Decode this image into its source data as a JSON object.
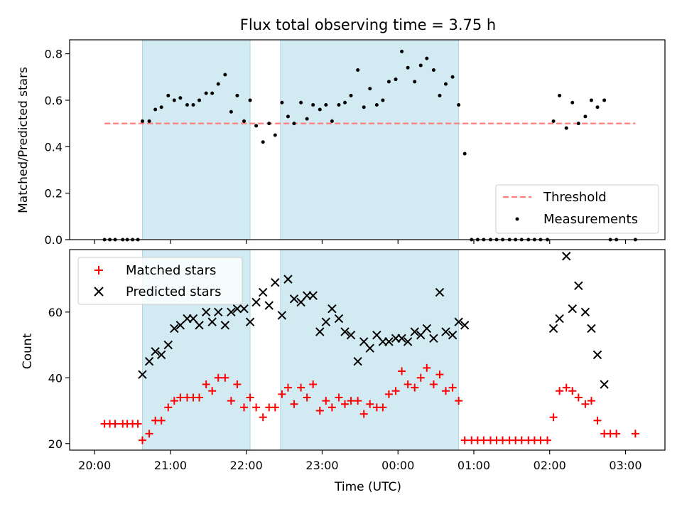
{
  "chart_data": {
    "title": "Flux total observing time = 3.75 h",
    "xlabel": "Time (UTC)",
    "x_tick_labels": [
      "20:00",
      "21:00",
      "22:00",
      "23:00",
      "00:00",
      "01:00",
      "02:00",
      "03:00"
    ],
    "x_tick_values_hours": [
      20,
      21,
      22,
      23,
      24,
      25,
      26,
      27
    ],
    "xlim_hours": [
      19.67,
      27.52
    ],
    "shaded_intervals_hours": [
      [
        20.63,
        22.05
      ],
      [
        22.45,
        24.8
      ]
    ],
    "shade_color": "#add8e6",
    "panels": [
      {
        "name": "ratio",
        "type": "scatter",
        "ylabel": "Matched/Predicted stars",
        "ylim": [
          0,
          0.86
        ],
        "yticks": [
          0.0,
          0.2,
          0.4,
          0.6,
          0.8
        ],
        "ytick_labels": [
          "0.0",
          "0.2",
          "0.4",
          "0.6",
          "0.8"
        ],
        "threshold": {
          "name": "Threshold",
          "value": 0.5,
          "x_range_hours": [
            20.13,
            27.13
          ],
          "color": "#ff7f7f"
        },
        "series": [
          {
            "name": "Measurements",
            "color": "#000000",
            "marker": "dot",
            "points": [
              [
                20.13,
                0.0
              ],
              [
                20.2,
                0.0
              ],
              [
                20.27,
                0.0
              ],
              [
                20.37,
                0.0
              ],
              [
                20.43,
                0.0
              ],
              [
                20.5,
                0.0
              ],
              [
                20.57,
                0.0
              ],
              [
                20.63,
                0.51
              ],
              [
                20.72,
                0.51
              ],
              [
                20.8,
                0.56
              ],
              [
                20.88,
                0.57
              ],
              [
                20.97,
                0.62
              ],
              [
                21.05,
                0.6
              ],
              [
                21.13,
                0.61
              ],
              [
                21.22,
                0.58
              ],
              [
                21.3,
                0.58
              ],
              [
                21.38,
                0.6
              ],
              [
                21.47,
                0.63
              ],
              [
                21.55,
                0.63
              ],
              [
                21.63,
                0.67
              ],
              [
                21.72,
                0.71
              ],
              [
                21.8,
                0.55
              ],
              [
                21.88,
                0.62
              ],
              [
                21.97,
                0.51
              ],
              [
                22.05,
                0.6
              ],
              [
                22.13,
                0.49
              ],
              [
                22.22,
                0.42
              ],
              [
                22.3,
                0.5
              ],
              [
                22.38,
                0.45
              ],
              [
                22.47,
                0.59
              ],
              [
                22.55,
                0.53
              ],
              [
                22.63,
                0.5
              ],
              [
                22.72,
                0.59
              ],
              [
                22.8,
                0.52
              ],
              [
                22.88,
                0.58
              ],
              [
                22.97,
                0.56
              ],
              [
                23.05,
                0.58
              ],
              [
                23.13,
                0.51
              ],
              [
                23.22,
                0.58
              ],
              [
                23.3,
                0.59
              ],
              [
                23.38,
                0.62
              ],
              [
                23.47,
                0.73
              ],
              [
                23.55,
                0.57
              ],
              [
                23.63,
                0.65
              ],
              [
                23.72,
                0.58
              ],
              [
                23.8,
                0.6
              ],
              [
                23.88,
                0.68
              ],
              [
                23.97,
                0.69
              ],
              [
                24.05,
                0.81
              ],
              [
                24.13,
                0.74
              ],
              [
                24.22,
                0.68
              ],
              [
                24.3,
                0.75
              ],
              [
                24.38,
                0.78
              ],
              [
                24.47,
                0.73
              ],
              [
                24.55,
                0.62
              ],
              [
                24.63,
                0.67
              ],
              [
                24.72,
                0.7
              ],
              [
                24.8,
                0.58
              ],
              [
                24.88,
                0.37
              ],
              [
                24.97,
                0.0
              ],
              [
                25.05,
                0.0
              ],
              [
                25.13,
                0.0
              ],
              [
                25.22,
                0.0
              ],
              [
                25.3,
                0.0
              ],
              [
                25.38,
                0.0
              ],
              [
                25.47,
                0.0
              ],
              [
                25.55,
                0.0
              ],
              [
                25.63,
                0.0
              ],
              [
                25.72,
                0.0
              ],
              [
                25.8,
                0.0
              ],
              [
                25.88,
                0.0
              ],
              [
                25.97,
                0.0
              ],
              [
                26.05,
                0.51
              ],
              [
                26.13,
                0.62
              ],
              [
                26.22,
                0.48
              ],
              [
                26.3,
                0.59
              ],
              [
                26.38,
                0.5
              ],
              [
                26.47,
                0.53
              ],
              [
                26.55,
                0.6
              ],
              [
                26.63,
                0.57
              ],
              [
                26.72,
                0.6
              ],
              [
                26.8,
                0.0
              ],
              [
                26.88,
                0.0
              ],
              [
                27.13,
                0.0
              ]
            ]
          }
        ],
        "legend": {
          "placement": "lower right",
          "entries": [
            "Threshold",
            "Measurements"
          ]
        }
      },
      {
        "name": "counts",
        "type": "scatter",
        "ylabel": "Count",
        "ylim": [
          18,
          79
        ],
        "yticks": [
          20,
          40,
          60
        ],
        "ytick_labels": [
          "20",
          "40",
          "60"
        ],
        "series": [
          {
            "name": "Matched stars",
            "color": "#ff0000",
            "marker": "+",
            "points": [
              [
                20.13,
                26
              ],
              [
                20.2,
                26
              ],
              [
                20.27,
                26
              ],
              [
                20.37,
                26
              ],
              [
                20.43,
                26
              ],
              [
                20.5,
                26
              ],
              [
                20.57,
                26
              ],
              [
                20.63,
                21
              ],
              [
                20.72,
                23
              ],
              [
                20.8,
                27
              ],
              [
                20.88,
                27
              ],
              [
                20.97,
                31
              ],
              [
                21.05,
                33
              ],
              [
                21.13,
                34
              ],
              [
                21.22,
                34
              ],
              [
                21.3,
                34
              ],
              [
                21.38,
                34
              ],
              [
                21.47,
                38
              ],
              [
                21.55,
                36
              ],
              [
                21.63,
                40
              ],
              [
                21.72,
                40
              ],
              [
                21.8,
                33
              ],
              [
                21.88,
                38
              ],
              [
                21.97,
                31
              ],
              [
                22.05,
                34
              ],
              [
                22.13,
                31
              ],
              [
                22.22,
                28
              ],
              [
                22.3,
                31
              ],
              [
                22.38,
                31
              ],
              [
                22.47,
                35
              ],
              [
                22.55,
                37
              ],
              [
                22.63,
                32
              ],
              [
                22.72,
                37
              ],
              [
                22.8,
                34
              ],
              [
                22.88,
                38
              ],
              [
                22.97,
                30
              ],
              [
                23.05,
                33
              ],
              [
                23.13,
                31
              ],
              [
                23.22,
                34
              ],
              [
                23.3,
                32
              ],
              [
                23.38,
                33
              ],
              [
                23.47,
                33
              ],
              [
                23.55,
                29
              ],
              [
                23.63,
                32
              ],
              [
                23.72,
                31
              ],
              [
                23.8,
                31
              ],
              [
                23.88,
                35
              ],
              [
                23.97,
                36
              ],
              [
                24.05,
                42
              ],
              [
                24.13,
                38
              ],
              [
                24.22,
                37
              ],
              [
                24.3,
                40
              ],
              [
                24.38,
                43
              ],
              [
                24.47,
                38
              ],
              [
                24.55,
                41
              ],
              [
                24.63,
                36
              ],
              [
                24.72,
                37
              ],
              [
                24.8,
                33
              ],
              [
                24.88,
                21
              ],
              [
                24.97,
                21
              ],
              [
                25.05,
                21
              ],
              [
                25.13,
                21
              ],
              [
                25.22,
                21
              ],
              [
                25.3,
                21
              ],
              [
                25.38,
                21
              ],
              [
                25.47,
                21
              ],
              [
                25.55,
                21
              ],
              [
                25.63,
                21
              ],
              [
                25.72,
                21
              ],
              [
                25.8,
                21
              ],
              [
                25.88,
                21
              ],
              [
                25.97,
                21
              ],
              [
                26.05,
                28
              ],
              [
                26.13,
                36
              ],
              [
                26.22,
                37
              ],
              [
                26.3,
                36
              ],
              [
                26.38,
                34
              ],
              [
                26.47,
                32
              ],
              [
                26.55,
                33
              ],
              [
                26.63,
                27
              ],
              [
                26.72,
                23
              ],
              [
                26.8,
                23
              ],
              [
                26.88,
                23
              ],
              [
                27.13,
                23
              ]
            ]
          },
          {
            "name": "Predicted stars",
            "color": "#000000",
            "marker": "x",
            "points": [
              [
                20.63,
                41
              ],
              [
                20.72,
                45
              ],
              [
                20.8,
                48
              ],
              [
                20.88,
                47
              ],
              [
                20.97,
                50
              ],
              [
                21.05,
                55
              ],
              [
                21.13,
                56
              ],
              [
                21.22,
                58
              ],
              [
                21.3,
                58
              ],
              [
                21.38,
                56
              ],
              [
                21.47,
                60
              ],
              [
                21.55,
                57
              ],
              [
                21.63,
                60
              ],
              [
                21.72,
                56
              ],
              [
                21.8,
                60
              ],
              [
                21.88,
                61
              ],
              [
                21.97,
                61
              ],
              [
                22.05,
                57
              ],
              [
                22.13,
                63
              ],
              [
                22.22,
                66
              ],
              [
                22.3,
                62
              ],
              [
                22.38,
                69
              ],
              [
                22.47,
                59
              ],
              [
                22.55,
                70
              ],
              [
                22.63,
                64
              ],
              [
                22.72,
                63
              ],
              [
                22.8,
                65
              ],
              [
                22.88,
                65
              ],
              [
                22.97,
                54
              ],
              [
                23.05,
                57
              ],
              [
                23.13,
                61
              ],
              [
                23.22,
                58
              ],
              [
                23.3,
                54
              ],
              [
                23.38,
                53
              ],
              [
                23.47,
                45
              ],
              [
                23.55,
                51
              ],
              [
                23.63,
                49
              ],
              [
                23.72,
                53
              ],
              [
                23.8,
                51
              ],
              [
                23.88,
                51
              ],
              [
                23.97,
                52
              ],
              [
                24.05,
                52
              ],
              [
                24.13,
                51
              ],
              [
                24.22,
                54
              ],
              [
                24.3,
                53
              ],
              [
                24.38,
                55
              ],
              [
                24.47,
                52
              ],
              [
                24.55,
                66
              ],
              [
                24.63,
                54
              ],
              [
                24.72,
                53
              ],
              [
                24.8,
                57
              ],
              [
                24.88,
                56
              ],
              [
                26.05,
                55
              ],
              [
                26.13,
                58
              ],
              [
                26.22,
                77
              ],
              [
                26.3,
                61
              ],
              [
                26.38,
                68
              ],
              [
                26.47,
                60
              ],
              [
                26.55,
                55
              ],
              [
                26.63,
                47
              ],
              [
                26.72,
                38
              ]
            ]
          }
        ],
        "legend": {
          "placement": "upper left",
          "entries": [
            "Matched stars",
            "Predicted stars"
          ]
        }
      }
    ]
  }
}
